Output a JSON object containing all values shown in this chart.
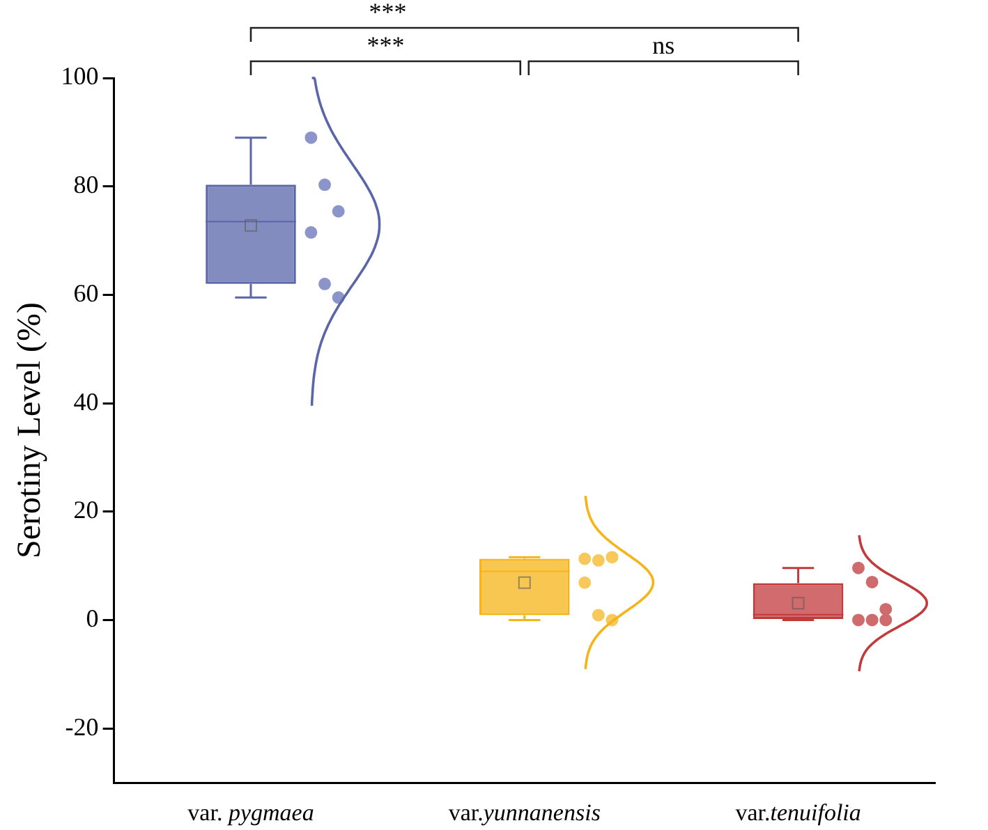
{
  "chart_data": {
    "type": "box",
    "ylabel": "Serotiny Level (%)",
    "categories": [
      "var. pygmaea",
      "var.yunnanensis",
      "var.tenuifolia"
    ],
    "colors": [
      "#5a66a8",
      "#f5b417",
      "#c13a3c"
    ],
    "boxes": [
      {
        "low": 59.5,
        "q1": 62,
        "median": 73.5,
        "q3": 80.3,
        "high": 89,
        "mean": 72.8
      },
      {
        "low": 0,
        "q1": 0.9,
        "median": 9,
        "q3": 11.3,
        "high": 11.6,
        "mean": 6.9
      },
      {
        "low": 0,
        "q1": 0,
        "median": 1,
        "q3": 6.8,
        "high": 9.6,
        "mean": 3.1
      }
    ],
    "series": [
      {
        "type": "scatter",
        "color": "#8c95c9",
        "x": [
          "var. pygmaea",
          "var. pygmaea",
          "var. pygmaea",
          "var. pygmaea",
          "var. pygmaea",
          "var. pygmaea"
        ],
        "values": [
          89,
          80.3,
          75.4,
          71.5,
          62,
          59.5
        ]
      },
      {
        "type": "scatter",
        "color": "#f7c85a",
        "x": [
          "var.yunnanensis",
          "var.yunnanensis",
          "var.yunnanensis",
          "var.yunnanensis",
          "var.yunnanensis",
          "var.yunnanensis"
        ],
        "values": [
          11.3,
          11,
          11.6,
          6.9,
          0.9,
          0
        ]
      },
      {
        "type": "scatter",
        "color": "#cf6b6c",
        "x": [
          "var.tenuifolia",
          "var.tenuifolia",
          "var.tenuifolia",
          "var.tenuifolia",
          "var.tenuifolia",
          "var.tenuifolia"
        ],
        "values": [
          9.6,
          7,
          2,
          0,
          0,
          0
        ]
      }
    ],
    "ylim": [
      -30,
      100
    ],
    "yticks": [
      -20,
      0,
      20,
      40,
      60,
      80,
      100
    ],
    "marker": "circle",
    "annotations": [
      "***",
      "***",
      "ns"
    ]
  }
}
